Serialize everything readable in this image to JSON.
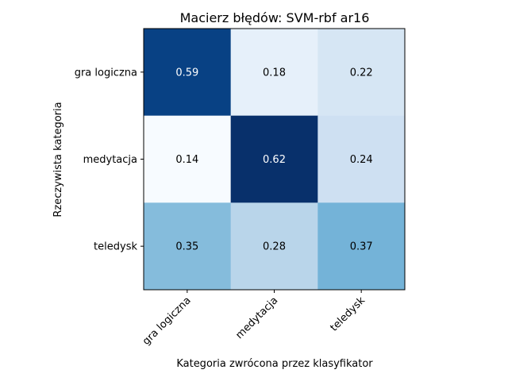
{
  "chart_data": {
    "type": "heatmap",
    "title": "Macierz błędów: SVM-rbf ar16",
    "xlabel": "Kategoria zwrócona przez klasyfikator",
    "ylabel": "Rzeczywista kategoria",
    "x_categories": [
      "gra logiczna",
      "medytacja",
      "teledysk"
    ],
    "y_categories": [
      "gra logiczna",
      "medytacja",
      "teledysk"
    ],
    "values": [
      [
        0.59,
        0.18,
        0.22
      ],
      [
        0.14,
        0.62,
        0.24
      ],
      [
        0.35,
        0.28,
        0.37
      ]
    ],
    "value_labels": [
      [
        "0.59",
        "0.18",
        "0.22"
      ],
      [
        "0.14",
        "0.62",
        "0.24"
      ],
      [
        "0.35",
        "0.28",
        "0.37"
      ]
    ],
    "colormap": "Blues",
    "colors": {
      "low": "#f7fbff",
      "high": "#08306b",
      "text_dark": "#000000",
      "text_light": "#ffffff"
    }
  }
}
